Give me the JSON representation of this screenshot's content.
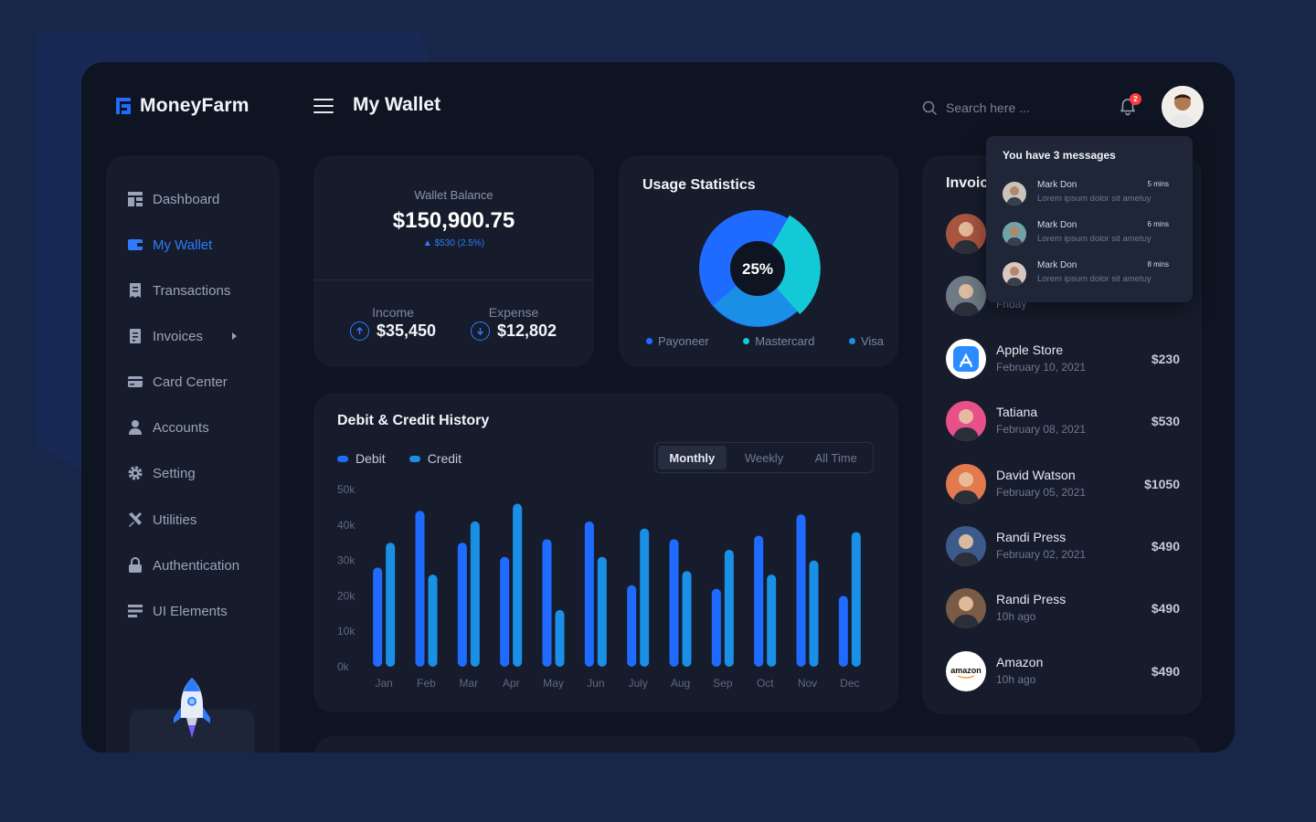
{
  "app": {
    "name": "MoneyFarm"
  },
  "header": {
    "title": "My Wallet",
    "search_placeholder": "Search here ...",
    "notification_count": "2"
  },
  "sidebar": {
    "items": [
      {
        "label": "Dashboard",
        "icon": "dashboard-icon",
        "active": false
      },
      {
        "label": "My Wallet",
        "icon": "wallet-icon",
        "active": true
      },
      {
        "label": "Transactions",
        "icon": "receipt-icon",
        "active": false
      },
      {
        "label": "Invoices",
        "icon": "invoice-icon",
        "active": false,
        "has_submenu": true
      },
      {
        "label": "Card Center",
        "icon": "credit-card-icon",
        "active": false
      },
      {
        "label": "Accounts",
        "icon": "user-icon",
        "active": false
      },
      {
        "label": "Setting",
        "icon": "gear-icon",
        "active": false
      },
      {
        "label": "Utilities",
        "icon": "tools-icon",
        "active": false
      },
      {
        "label": "Authentication",
        "icon": "lock-icon",
        "active": false
      },
      {
        "label": "UI Elements",
        "icon": "list-icon",
        "active": false
      }
    ]
  },
  "wallet": {
    "label": "Wallet Balance",
    "balance": "$150,900.75",
    "delta": "$530 (2.5%)",
    "income_label": "Income",
    "income_value": "$35,450",
    "expense_label": "Expense",
    "expense_value": "$12,802"
  },
  "usage": {
    "title": "Usage Statistics",
    "center_label": "25%",
    "legend": [
      {
        "label": "Payoneer",
        "color": "#1f6bff"
      },
      {
        "label": "Mastercard",
        "color": "#14c9d6"
      },
      {
        "label": "Visa",
        "color": "#1a8fe6"
      }
    ]
  },
  "history": {
    "title": "Debit & Credit History",
    "debit_label": "Debit",
    "credit_label": "Credit",
    "tabs": [
      "Monthly",
      "Weekly",
      "All Time"
    ],
    "active_tab": "Monthly"
  },
  "chart_data": {
    "type": "bar",
    "title": "Debit & Credit History",
    "categories": [
      "Jan",
      "Feb",
      "Mar",
      "Apr",
      "May",
      "Jun",
      "July",
      "Aug",
      "Sep",
      "Oct",
      "Nov",
      "Dec"
    ],
    "series": [
      {
        "name": "Debit",
        "color": "#1f6bff",
        "values": [
          28,
          44,
          35,
          31,
          36,
          41,
          23,
          36,
          22,
          37,
          43,
          20
        ]
      },
      {
        "name": "Credit",
        "color": "#1a8fe6",
        "values": [
          35,
          26,
          41,
          46,
          16,
          31,
          39,
          27,
          33,
          26,
          30,
          38
        ]
      }
    ],
    "y_ticks": [
      "0k",
      "10k",
      "20k",
      "30k",
      "40k",
      "50k"
    ],
    "ylim": [
      0,
      50
    ],
    "grid": false,
    "legend": "top-left"
  },
  "invoices": {
    "title": "Invoices",
    "items": [
      {
        "name": "",
        "date": "",
        "amount": "",
        "avatar_color": "#a8553f"
      },
      {
        "name": "",
        "date": "Friday",
        "amount": "",
        "avatar_color": "#6e7b84"
      },
      {
        "name": "Apple Store",
        "date": "February 10, 2021",
        "amount": "$230",
        "avatar_color": "#2a8cff"
      },
      {
        "name": "Tatiana",
        "date": "February 08, 2021",
        "amount": "$530",
        "avatar_color": "#e8508a"
      },
      {
        "name": "David Watson",
        "date": "February 05, 2021",
        "amount": "$1050",
        "avatar_color": "#e27a4e"
      },
      {
        "name": "Randi Press",
        "date": "February 02, 2021",
        "amount": "$490",
        "avatar_color": "#3c5a8c"
      },
      {
        "name": "Randi Press",
        "date": "10h ago",
        "amount": "$490",
        "avatar_color": "#7a5b45"
      },
      {
        "name": "Amazon",
        "date": "10h ago",
        "amount": "$490",
        "avatar_color": "#ffffff"
      }
    ]
  },
  "messages": {
    "header": "You have 3 messages",
    "items": [
      {
        "name": "Mark Don",
        "time": "5 mins",
        "text": "Lorem ipsum dolor sit ametuy",
        "avatar_color": "#c9c3bd"
      },
      {
        "name": "Mark Don",
        "time": "6 mins",
        "text": "Lorem ipsum dolor sit ametuy",
        "avatar_color": "#6fa3a8"
      },
      {
        "name": "Mark Don",
        "time": "8 mins",
        "text": "Lorem ipsum dolor sit ametuy",
        "avatar_color": "#d9c7c2"
      }
    ]
  },
  "colors": {
    "accent": "#1f6bff",
    "cyan": "#14c9d6",
    "sky": "#1a8fe6"
  }
}
